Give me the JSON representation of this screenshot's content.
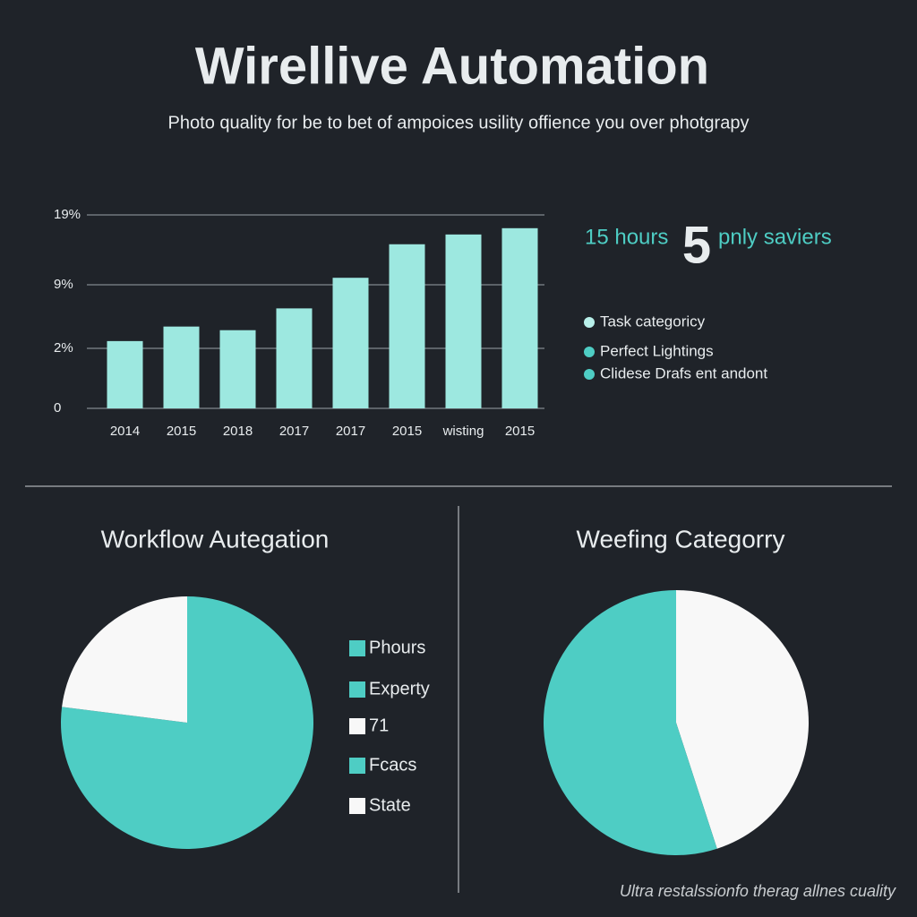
{
  "title": "Wirellive Automation",
  "subtitle": "Photo quality for be to bet of ampoices usility offience you over photgrapy",
  "stats": {
    "hours": "15 hours",
    "number": "5",
    "text": "pnly saviers"
  },
  "key": [
    {
      "label": "Task categoricy",
      "color": "#b8f0ea"
    },
    {
      "label": "Perfect Lightings",
      "color": "#4ecdc4"
    },
    {
      "label": "Clidese Drafs ent andont",
      "color": "#4ecdc4"
    }
  ],
  "footer": "Ultra restalssionfo therag allnes cuality",
  "chart_data": [
    {
      "type": "bar",
      "categories": [
        "2014",
        "2015",
        "2018",
        "2017",
        "2017",
        "2015",
        "wisting",
        "2015"
      ],
      "values": [
        2.8,
        4.4,
        4.0,
        6.4,
        10.0,
        14.8,
        16.2,
        17.1
      ],
      "color": "#9de8e0",
      "ylim": [
        0,
        19
      ],
      "yticks": [
        0,
        {
          "value": 2,
          "label": "2%"
        },
        {
          "value": 9,
          "label": "9%"
        },
        {
          "value": 19,
          "label": "19%"
        }
      ],
      "grid": true
    },
    {
      "type": "pie",
      "title": "Workflow Autegation",
      "categories": [
        null,
        null
      ],
      "values": [
        77,
        23
      ],
      "colors": [
        "#4ecdc4",
        "#f8f8f8"
      ],
      "legend": [
        {
          "label": "Phours",
          "color": "#4ecdc4"
        },
        {
          "label": "Experty",
          "color": "#4ecdc4"
        },
        {
          "label": "71",
          "color": "#f8f8f8"
        },
        {
          "label": "Fcacs",
          "color": "#4ecdc4"
        },
        {
          "label": "State",
          "color": "#f8f8f8"
        }
      ]
    },
    {
      "type": "pie",
      "title": "Weefing Categorry",
      "categories": [
        null,
        null
      ],
      "values": [
        45,
        55
      ],
      "colors": [
        "#f8f8f8",
        "#4ecdc4"
      ]
    }
  ]
}
